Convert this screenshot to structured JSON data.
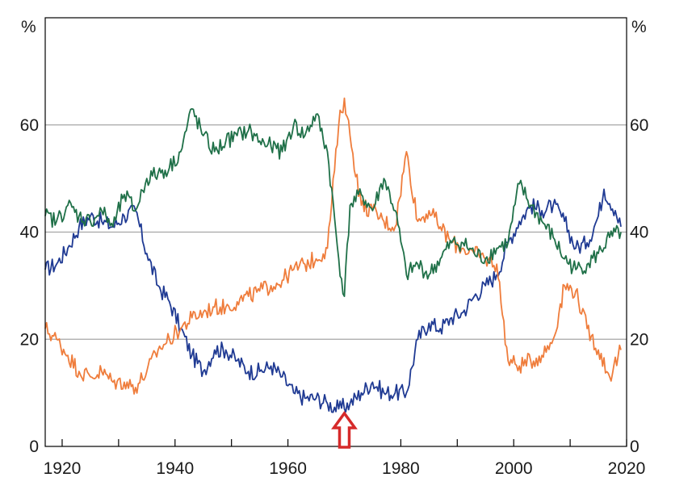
{
  "chart_data": {
    "type": "line",
    "title": "",
    "xlabel": "",
    "ylabel": "%",
    "ylabel_right": "%",
    "xlim": [
      1917,
      2020
    ],
    "ylim": [
      0,
      80
    ],
    "grid": true,
    "x_ticks": [
      1920,
      1940,
      1960,
      1980,
      2000,
      2020
    ],
    "y_ticks": [
      0,
      20,
      40,
      60
    ],
    "colors": {
      "blue": "#1f3a93",
      "orange": "#ef7d3c",
      "green": "#1f7048",
      "grid": "#a6a6a6",
      "arrow": "#d62a2a"
    },
    "series": [
      {
        "name": "blue",
        "color": "#1f3a93",
        "x": [
          1917,
          1919,
          1921,
          1923,
          1925,
          1927,
          1929,
          1931,
          1933,
          1935,
          1937,
          1939,
          1941,
          1943,
          1945,
          1947,
          1949,
          1951,
          1953,
          1955,
          1957,
          1959,
          1961,
          1963,
          1965,
          1967,
          1969,
          1971,
          1973,
          1975,
          1977,
          1979,
          1981,
          1983,
          1985,
          1987,
          1989,
          1991,
          1993,
          1995,
          1997,
          1999,
          2001,
          2003,
          2005,
          2007,
          2009,
          2011,
          2013,
          2015,
          2016,
          2018,
          2019
        ],
        "values": [
          33,
          34,
          37,
          41,
          43,
          42,
          41,
          43,
          44,
          36,
          30,
          27,
          22,
          17,
          14,
          18,
          18,
          16,
          14,
          14,
          15,
          13,
          10,
          9,
          9,
          8,
          7,
          8,
          10,
          12,
          10,
          10,
          10,
          20,
          23,
          22,
          24,
          25,
          28,
          30,
          32,
          38,
          42,
          45,
          44,
          45,
          42,
          37,
          38,
          43,
          48,
          44,
          41
        ]
      },
      {
        "name": "orange",
        "color": "#ef7d3c",
        "x": [
          1917,
          1919,
          1921,
          1923,
          1925,
          1927,
          1929,
          1931,
          1933,
          1935,
          1937,
          1939,
          1941,
          1943,
          1945,
          1947,
          1949,
          1951,
          1953,
          1955,
          1957,
          1959,
          1961,
          1963,
          1965,
          1967,
          1969,
          1970,
          1971,
          1973,
          1975,
          1977,
          1979,
          1981,
          1983,
          1985,
          1987,
          1989,
          1991,
          1993,
          1995,
          1997,
          1999,
          2001,
          2003,
          2005,
          2007,
          2009,
          2011,
          2013,
          2015,
          2017,
          2019
        ],
        "values": [
          22,
          20,
          17,
          14,
          13,
          14,
          12,
          12,
          11,
          14,
          18,
          20,
          22,
          24,
          25,
          26,
          26,
          27,
          28,
          29,
          30,
          31,
          33,
          34,
          35,
          37,
          60,
          65,
          58,
          45,
          44,
          42,
          41,
          55,
          42,
          44,
          41,
          38,
          37,
          36,
          35,
          34,
          16,
          15,
          16,
          17,
          20,
          30,
          29,
          22,
          18,
          13,
          18
        ]
      },
      {
        "name": "green",
        "color": "#1f7048",
        "x": [
          1917,
          1919,
          1921,
          1923,
          1925,
          1927,
          1929,
          1931,
          1933,
          1935,
          1937,
          1939,
          1941,
          1943,
          1945,
          1947,
          1949,
          1951,
          1953,
          1955,
          1957,
          1959,
          1961,
          1963,
          1965,
          1967,
          1969,
          1970,
          1971,
          1973,
          1975,
          1977,
          1979,
          1981,
          1983,
          1985,
          1987,
          1989,
          1991,
          1993,
          1995,
          1997,
          1999,
          2001,
          2003,
          2005,
          2007,
          2009,
          2011,
          2013,
          2015,
          2017,
          2019
        ],
        "values": [
          43,
          42,
          45,
          43,
          42,
          44,
          41,
          47,
          44,
          50,
          51,
          52,
          55,
          63,
          58,
          55,
          57,
          58,
          59,
          57,
          56,
          55,
          60,
          58,
          62,
          55,
          35,
          28,
          45,
          47,
          44,
          50,
          44,
          32,
          34,
          32,
          35,
          38,
          38,
          36,
          35,
          37,
          38,
          49,
          45,
          42,
          39,
          35,
          33,
          34,
          36,
          39,
          40
        ]
      }
    ],
    "annotations": [
      {
        "type": "up-arrow",
        "x": 1970,
        "color": "#d62a2a"
      }
    ]
  }
}
